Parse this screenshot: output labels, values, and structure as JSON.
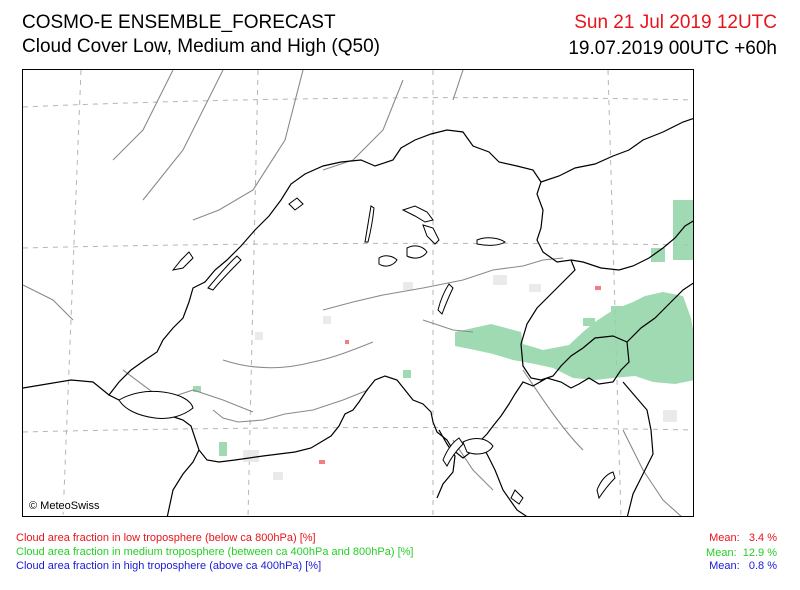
{
  "header": {
    "title": "COSMO-E ENSEMBLE_FORECAST",
    "subtitle": "Cloud Cover Low, Medium and High (Q50)",
    "valid_date": "Sun 21 Jul 2019 12UTC",
    "run_info": "19.07.2019 00UTC +60h"
  },
  "map": {
    "copyright": "© MeteoSwiss",
    "colors": {
      "low": "#e8141b",
      "medium": "#26cf26",
      "high": "#1a1ad6",
      "medium_fill": "#8fd4a6",
      "grid": "#b5b5b5",
      "border": "#000000",
      "river": "#8a8a8a"
    }
  },
  "legend": {
    "low": {
      "label": "Cloud area fraction in low troposphere (below ca 800hPa) [%]",
      "mean_label": "Mean:",
      "mean_value": "3.4 %",
      "mean": 3.4
    },
    "medium": {
      "label": "Cloud area fraction in medium troposphere (between ca 400hPa and 800hPa) [%]",
      "mean_label": "Mean:",
      "mean_value": "12.9 %",
      "mean": 12.9
    },
    "high": {
      "label": "Cloud area fraction in high troposphere (above ca 400hPa) [%]",
      "mean_label": "Mean:",
      "mean_value": "0.8 %",
      "mean": 0.8
    }
  }
}
